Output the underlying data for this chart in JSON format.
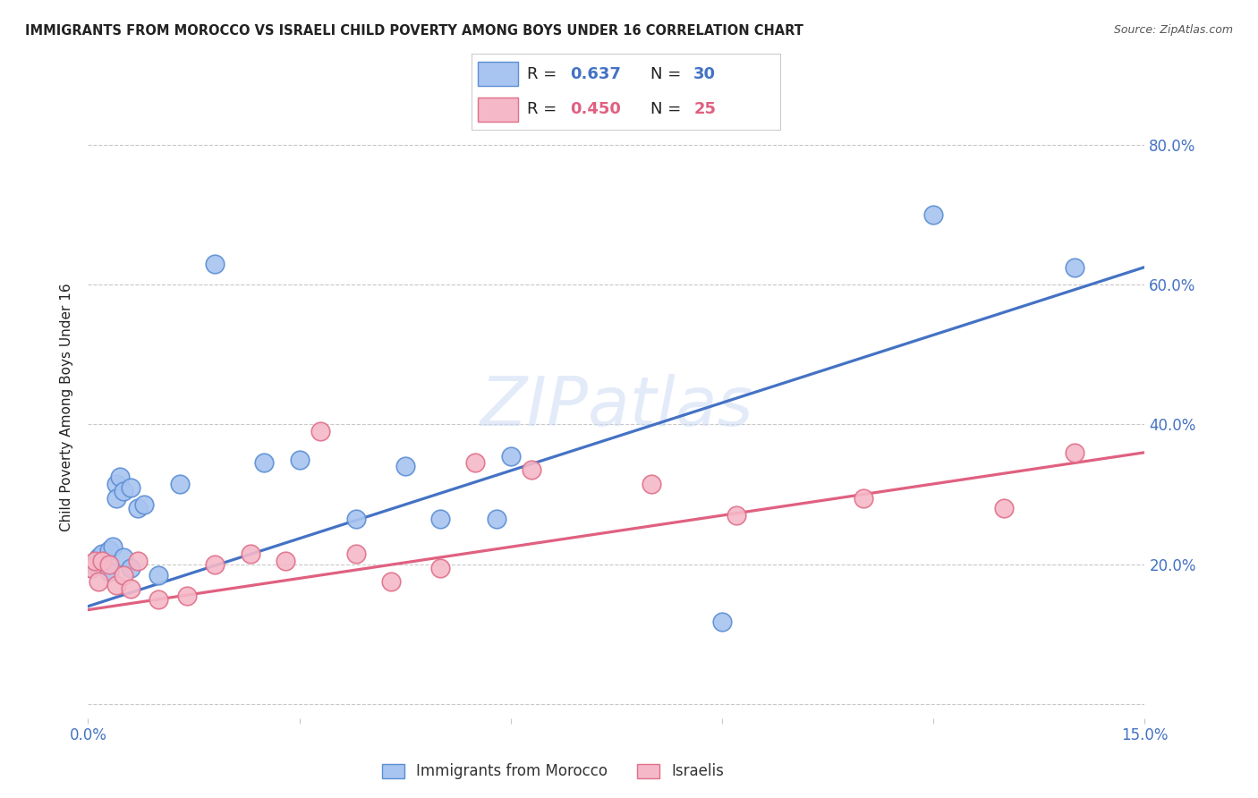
{
  "title": "IMMIGRANTS FROM MOROCCO VS ISRAELI CHILD POVERTY AMONG BOYS UNDER 16 CORRELATION CHART",
  "source": "Source: ZipAtlas.com",
  "ylabel": "Child Poverty Among Boys Under 16",
  "xlim": [
    0.0,
    0.15
  ],
  "ylim": [
    -0.02,
    0.87
  ],
  "ytick_positions": [
    0.0,
    0.2,
    0.4,
    0.6,
    0.8
  ],
  "ytick_labels_right": [
    "",
    "20.0%",
    "40.0%",
    "60.0%",
    "80.0%"
  ],
  "xtick_positions": [
    0.0,
    0.03,
    0.06,
    0.09,
    0.12,
    0.15
  ],
  "xtick_labels": [
    "0.0%",
    "",
    "",
    "",
    "",
    "15.0%"
  ],
  "blue_R": "0.637",
  "blue_N": "30",
  "pink_R": "0.450",
  "pink_N": "25",
  "blue_points_x": [
    0.0005,
    0.001,
    0.0015,
    0.002,
    0.002,
    0.003,
    0.003,
    0.0035,
    0.004,
    0.004,
    0.0045,
    0.005,
    0.005,
    0.006,
    0.006,
    0.007,
    0.008,
    0.01,
    0.013,
    0.018,
    0.025,
    0.03,
    0.038,
    0.045,
    0.05,
    0.058,
    0.06,
    0.09,
    0.12,
    0.14
  ],
  "blue_points_y": [
    0.195,
    0.2,
    0.21,
    0.205,
    0.215,
    0.19,
    0.22,
    0.225,
    0.315,
    0.295,
    0.325,
    0.305,
    0.21,
    0.195,
    0.31,
    0.28,
    0.285,
    0.185,
    0.315,
    0.63,
    0.345,
    0.35,
    0.265,
    0.34,
    0.265,
    0.265,
    0.355,
    0.118,
    0.7,
    0.625
  ],
  "pink_points_x": [
    0.0005,
    0.001,
    0.0015,
    0.002,
    0.003,
    0.004,
    0.005,
    0.006,
    0.007,
    0.01,
    0.014,
    0.018,
    0.023,
    0.028,
    0.033,
    0.038,
    0.043,
    0.05,
    0.055,
    0.063,
    0.08,
    0.092,
    0.11,
    0.13,
    0.14
  ],
  "pink_points_y": [
    0.195,
    0.205,
    0.175,
    0.205,
    0.2,
    0.17,
    0.185,
    0.165,
    0.205,
    0.15,
    0.155,
    0.2,
    0.215,
    0.205,
    0.39,
    0.215,
    0.175,
    0.195,
    0.345,
    0.335,
    0.315,
    0.27,
    0.295,
    0.28,
    0.36
  ],
  "blue_line_x": [
    0.0,
    0.15
  ],
  "blue_line_y": [
    0.14,
    0.625
  ],
  "pink_line_x": [
    0.0,
    0.15
  ],
  "pink_line_y": [
    0.135,
    0.36
  ],
  "blue_fill": "#a8c4f0",
  "blue_edge": "#5b8fd4",
  "pink_fill": "#f5b8c8",
  "pink_edge": "#e0708a",
  "blue_line_color": "#4472c4",
  "pink_line_color": "#e06080",
  "axis_label_color": "#4472c4",
  "text_color": "#222222",
  "source_color": "#555555",
  "watermark_color": "#c8d8f4",
  "grid_color": "#c8c8c8",
  "background": "#ffffff"
}
